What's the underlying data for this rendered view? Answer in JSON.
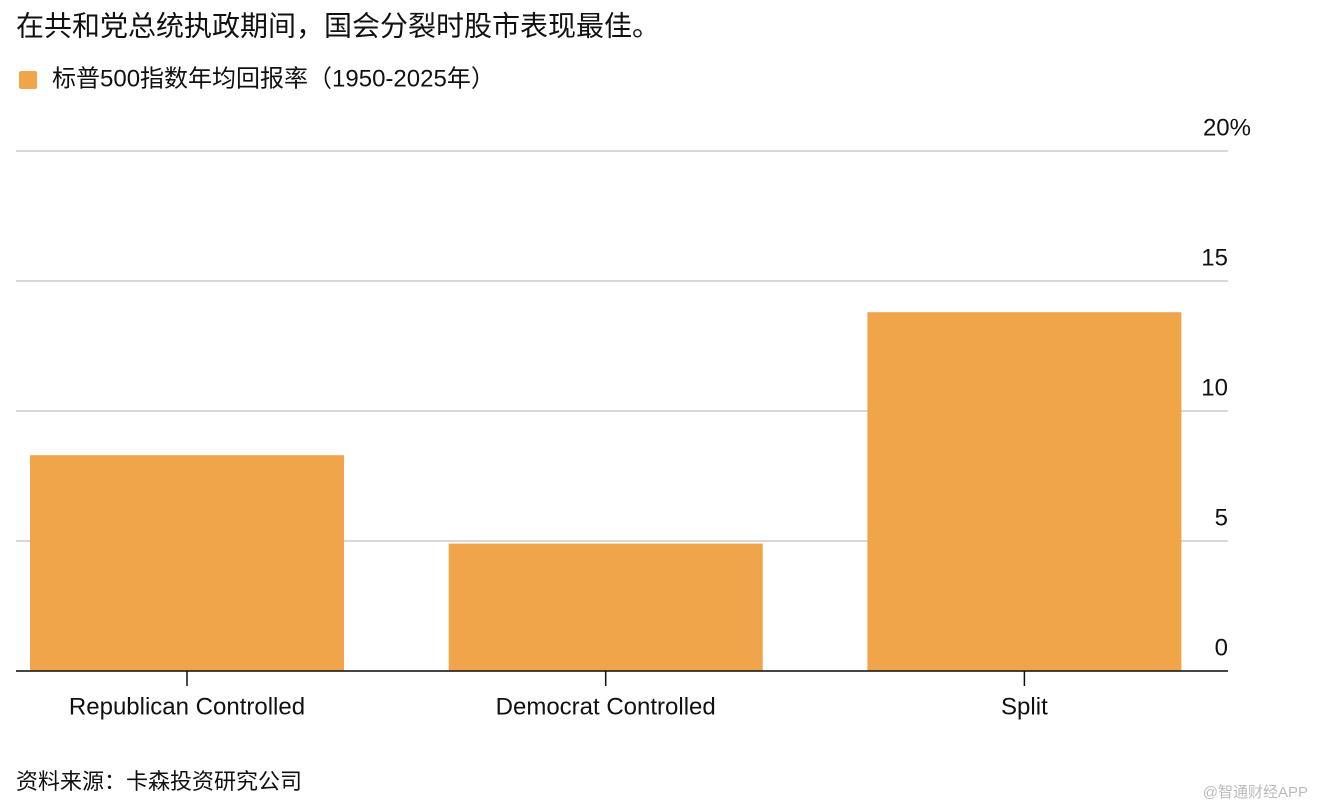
{
  "chart_data": {
    "type": "bar",
    "title": "在共和党总统执政期间，国会分裂时股市表现最佳。",
    "categories": [
      "Republican Controlled",
      "Democrat Controlled",
      "Split"
    ],
    "series": [
      {
        "name": "标普500指数年均回报率（1950-2025年）",
        "color": "#f0a54a",
        "values": [
          8.3,
          4.9,
          13.8
        ]
      }
    ],
    "ylim": [
      0,
      20
    ],
    "yticks": [
      0,
      5,
      10,
      15,
      {
        "value": 20,
        "label": "20%"
      }
    ],
    "grid": true,
    "source": "资料来源：卡森投资研究公司",
    "watermark": "@智通财经APP"
  }
}
